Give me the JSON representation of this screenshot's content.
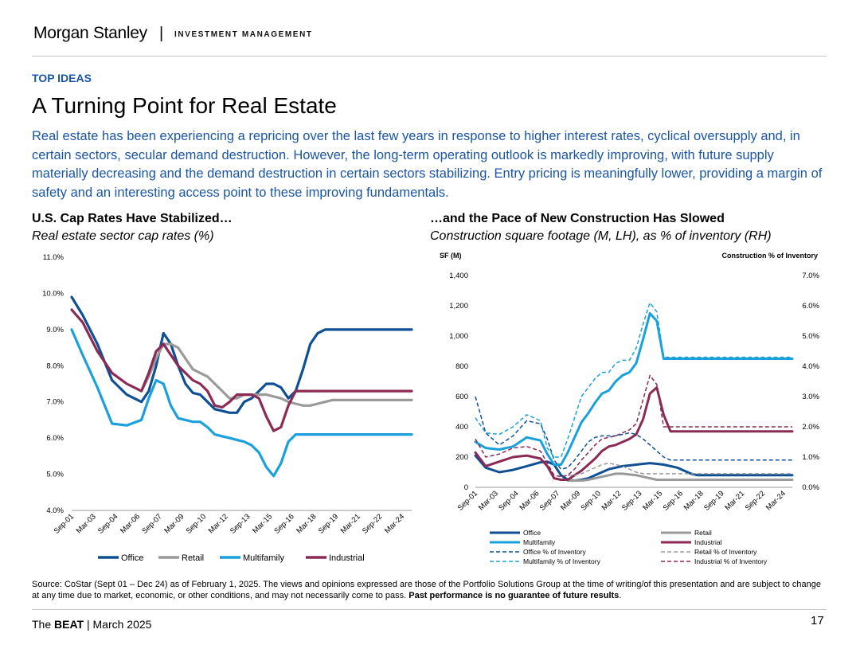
{
  "header": {
    "brand": "Morgan Stanley",
    "separator": "|",
    "division": "INVESTMENT MANAGEMENT",
    "kicker": "TOP IDEAS",
    "title": "A Turning Point for Real Estate",
    "intro": "Real estate has been experiencing a repricing over the last few years in response to higher interest rates, cyclical oversupply and, in certain sectors, secular demand destruction. However, the long-term operating outlook is markedly improving, with future supply materially decreasing and the demand destruction in certain sectors stabilizing. Entry pricing is meaningfully lower, providing a margin of safety and an interesting access point to these improving fundamentals."
  },
  "colors": {
    "office": "#0f4f94",
    "retail": "#9a9a9a",
    "multifamily": "#1aa0dc",
    "industrial": "#8b2a55",
    "accent": "#1a55a4"
  },
  "chart_data": [
    {
      "type": "line",
      "title": "U.S. Cap Rates Have Stabilized…",
      "subtitle": "Real estate sector cap rates (%)",
      "ylim": [
        4.0,
        11.0
      ],
      "y_ticks": [
        "4.0%",
        "5.0%",
        "6.0%",
        "7.0%",
        "8.0%",
        "9.0%",
        "10.0%",
        "11.0%"
      ],
      "x_tick_labels": [
        "Sep-01",
        "Mar-03",
        "Sep-04",
        "Mar-06",
        "Sep-07",
        "Mar-09",
        "Sep-10",
        "Mar-12",
        "Sep-13",
        "Mar-15",
        "Sep-16",
        "Mar-18",
        "Sep-19",
        "Mar-21",
        "Sep-22",
        "Mar-24"
      ],
      "x": [
        2001.75,
        2002.5,
        2003.5,
        2004.5,
        2005.5,
        2006.5,
        2007.0,
        2007.5,
        2008.0,
        2008.5,
        2009.0,
        2009.5,
        2010.0,
        2010.5,
        2011.0,
        2011.5,
        2012.0,
        2012.5,
        2013.0,
        2013.5,
        2014.0,
        2014.5,
        2015.0,
        2015.5,
        2016.0,
        2016.5,
        2017.0,
        2017.5,
        2018.0,
        2018.5,
        2019.0,
        2019.5,
        2020.0,
        2020.5,
        2021.0,
        2021.5,
        2022.0,
        2022.5,
        2023.0,
        2023.5,
        2024.0,
        2024.5,
        2024.9
      ],
      "series": [
        {
          "name": "Office",
          "color": "#0f4f94",
          "values": [
            9.9,
            9.4,
            8.6,
            7.6,
            7.2,
            7.0,
            7.3,
            8.0,
            8.9,
            8.6,
            8.0,
            7.5,
            7.25,
            7.2,
            7.0,
            6.8,
            6.75,
            6.7,
            6.7,
            7.0,
            7.1,
            7.3,
            7.5,
            7.5,
            7.4,
            7.1,
            7.3,
            7.9,
            8.6,
            8.9,
            9.0,
            9.0,
            9.0,
            9.0,
            9.0,
            9.0,
            9.0,
            9.0,
            9.0,
            9.0,
            9.0,
            9.0,
            9.0
          ]
        },
        {
          "name": "Retail",
          "color": "#9a9a9a",
          "values": [
            null,
            null,
            null,
            null,
            null,
            7.3,
            7.7,
            8.2,
            8.6,
            8.6,
            8.5,
            8.2,
            7.9,
            7.8,
            7.7,
            7.5,
            7.3,
            7.1,
            7.1,
            7.2,
            7.2,
            7.2,
            7.2,
            7.15,
            7.1,
            7.0,
            6.95,
            6.9,
            6.9,
            6.95,
            7.0,
            7.05,
            7.05,
            7.05,
            7.05,
            7.05,
            7.05,
            7.05,
            7.05,
            7.05,
            7.05,
            7.05,
            7.05
          ]
        },
        {
          "name": "Multifamily",
          "color": "#1aa0dc",
          "values": [
            9.0,
            8.3,
            7.4,
            6.4,
            6.35,
            6.5,
            7.1,
            7.6,
            7.5,
            6.9,
            6.55,
            6.5,
            6.45,
            6.45,
            6.3,
            6.1,
            6.05,
            6.0,
            5.95,
            5.9,
            5.8,
            5.6,
            5.2,
            4.95,
            5.3,
            5.9,
            6.1,
            6.1,
            6.1,
            6.1,
            6.1,
            6.1,
            6.1,
            6.1,
            6.1,
            6.1,
            6.1,
            6.1,
            6.1,
            6.1,
            6.1,
            6.1,
            6.1
          ]
        },
        {
          "name": "Industrial",
          "color": "#8b2a55",
          "values": [
            9.55,
            9.2,
            8.4,
            7.8,
            7.5,
            7.3,
            7.8,
            8.4,
            8.6,
            8.3,
            8.0,
            7.8,
            7.6,
            7.5,
            7.3,
            6.9,
            6.85,
            7.0,
            7.2,
            7.2,
            7.2,
            7.1,
            6.6,
            6.2,
            6.3,
            6.9,
            7.3,
            7.3,
            7.3,
            7.3,
            7.3,
            7.3,
            7.3,
            7.3,
            7.3,
            7.3,
            7.3,
            7.3,
            7.3,
            7.3,
            7.3,
            7.3,
            7.3
          ]
        }
      ],
      "legend": "bottom"
    },
    {
      "type": "line",
      "title": "…and the Pace of New Construction Has Slowed",
      "subtitle": "Construction square footage (M, LH), as % of inventory (RH)",
      "ylabel_left": "SF (M)",
      "ylabel_right": "Construction % of Inventory",
      "ylim_left": [
        0,
        1400
      ],
      "ylim_right": [
        0.0,
        7.0
      ],
      "y_ticks_left": [
        "0",
        "200",
        "400",
        "600",
        "800",
        "1,000",
        "1,200",
        "1,400"
      ],
      "y_ticks_right": [
        "0.0%",
        "1.0%",
        "2.0%",
        "3.0%",
        "4.0%",
        "5.0%",
        "6.0%",
        "7.0%"
      ],
      "x_tick_labels": [
        "Sep-01",
        "Mar-03",
        "Sep-04",
        "Mar-06",
        "Sep-07",
        "Mar-09",
        "Sep-10",
        "Mar-12",
        "Sep-13",
        "Mar-15",
        "Sep-16",
        "Mar-18",
        "Sep-19",
        "Mar-21",
        "Sep-22",
        "Mar-24"
      ],
      "x": [
        2001.75,
        2002.5,
        2003.5,
        2004.5,
        2005.5,
        2006.5,
        2007.0,
        2007.5,
        2008.0,
        2008.5,
        2009.0,
        2009.5,
        2010.0,
        2010.5,
        2011.0,
        2011.5,
        2012.0,
        2012.5,
        2013.0,
        2013.5,
        2014.0,
        2014.5,
        2015.0,
        2015.5,
        2016.0,
        2016.5,
        2017.0,
        2017.5,
        2018.0,
        2018.5,
        2019.0,
        2019.5,
        2020.0,
        2020.5,
        2021.0,
        2021.5,
        2022.0,
        2022.5,
        2023.0,
        2023.5,
        2024.0,
        2024.5,
        2024.9
      ],
      "series": [
        {
          "name": "Office",
          "axis": "left",
          "color": "#0f4f94",
          "dash": false,
          "values": [
            210,
            130,
            100,
            115,
            140,
            165,
            170,
            150,
            80,
            50,
            45,
            50,
            60,
            80,
            100,
            120,
            130,
            140,
            145,
            150,
            155,
            160,
            155,
            150,
            140,
            130,
            110,
            90,
            80,
            80,
            80,
            80,
            80,
            80,
            80,
            80,
            80,
            80,
            80,
            80,
            80,
            80,
            80
          ]
        },
        {
          "name": "Retail",
          "axis": "left",
          "color": "#9a9a9a",
          "dash": false,
          "values": [
            null,
            null,
            null,
            null,
            null,
            null,
            null,
            null,
            null,
            45,
            45,
            45,
            50,
            60,
            70,
            80,
            90,
            90,
            85,
            80,
            70,
            60,
            50,
            50,
            50,
            50,
            50,
            50,
            50,
            50,
            50,
            50,
            50,
            50,
            50,
            50,
            50,
            50,
            50,
            50,
            50,
            50,
            50
          ]
        },
        {
          "name": "Multifamily",
          "axis": "left",
          "color": "#1aa0dc",
          "dash": false,
          "values": [
            300,
            260,
            250,
            270,
            330,
            310,
            220,
            150,
            150,
            230,
            330,
            430,
            490,
            560,
            620,
            640,
            700,
            740,
            760,
            820,
            980,
            1150,
            1100,
            850,
            850,
            850,
            850,
            850,
            850,
            850,
            850,
            850,
            850,
            850,
            850,
            850,
            850,
            850,
            850,
            850,
            850,
            850,
            850
          ]
        },
        {
          "name": "Industrial",
          "axis": "left",
          "color": "#8b2a55",
          "dash": false,
          "values": [
            230,
            140,
            170,
            200,
            210,
            190,
            140,
            60,
            50,
            50,
            80,
            110,
            150,
            190,
            240,
            270,
            280,
            300,
            320,
            350,
            450,
            620,
            660,
            480,
            370,
            370,
            370,
            370,
            370,
            370,
            370,
            370,
            370,
            370,
            370,
            370,
            370,
            370,
            370,
            370,
            370,
            370,
            370
          ]
        },
        {
          "name": "Office % of Inventory",
          "axis": "right",
          "color": "#0f4f94",
          "dash": true,
          "values": [
            3.0,
            1.8,
            1.4,
            1.7,
            2.2,
            2.1,
            1.6,
            0.9,
            0.6,
            0.65,
            0.9,
            1.2,
            1.5,
            1.65,
            1.7,
            1.7,
            1.7,
            1.75,
            1.8,
            1.75,
            1.6,
            1.4,
            1.2,
            1.0,
            0.9,
            0.9,
            0.9,
            0.9,
            0.9,
            0.9,
            0.9,
            0.9,
            0.9,
            0.9,
            0.9,
            0.9,
            0.9,
            0.9,
            0.9,
            0.9,
            0.9,
            0.9,
            0.9
          ]
        },
        {
          "name": "Retail % of Inventory",
          "axis": "right",
          "color": "#9a9a9a",
          "dash": true,
          "values": [
            null,
            null,
            null,
            null,
            null,
            null,
            null,
            null,
            null,
            0.4,
            0.4,
            0.45,
            0.55,
            0.65,
            0.75,
            0.8,
            0.75,
            0.7,
            0.6,
            0.5,
            0.45,
            0.45,
            0.45,
            0.45,
            0.45,
            0.45,
            0.45,
            0.45,
            0.45,
            0.45,
            0.45,
            0.45,
            0.45,
            0.45,
            0.45,
            0.45,
            0.45,
            0.45,
            0.45,
            0.45,
            0.45,
            0.45,
            0.45
          ]
        },
        {
          "name": "Multifamily % of Inventory",
          "axis": "right",
          "color": "#1aa0dc",
          "dash": true,
          "values": [
            2.3,
            1.8,
            1.75,
            2.0,
            2.4,
            2.2,
            1.3,
            1.0,
            1.0,
            1.6,
            2.3,
            3.0,
            3.3,
            3.6,
            3.8,
            3.8,
            4.1,
            4.2,
            4.2,
            4.6,
            5.4,
            6.1,
            5.8,
            4.3,
            4.3,
            4.3,
            4.3,
            4.3,
            4.3,
            4.3,
            4.3,
            4.3,
            4.3,
            4.3,
            4.3,
            4.3,
            4.3,
            4.3,
            4.3,
            4.3,
            4.3,
            4.3,
            4.3
          ]
        },
        {
          "name": "Industrial % of Inventory",
          "axis": "right",
          "color": "#8b2a55",
          "dash": true,
          "values": [
            1.6,
            1.0,
            1.1,
            1.3,
            1.35,
            1.2,
            0.8,
            0.4,
            0.35,
            0.4,
            0.6,
            0.9,
            1.15,
            1.4,
            1.6,
            1.65,
            1.7,
            1.8,
            1.9,
            2.1,
            2.9,
            3.7,
            3.4,
            2.0,
            2.0,
            2.0,
            2.0,
            2.0,
            2.0,
            2.0,
            2.0,
            2.0,
            2.0,
            2.0,
            2.0,
            2.0,
            2.0,
            2.0,
            2.0,
            2.0,
            2.0,
            2.0,
            2.0
          ]
        }
      ],
      "legend": "bottom"
    }
  ],
  "footnote": {
    "text": "Source: CoStar (Sept 01 – Dec 24) as of February 1, 2025. The views and opinions expressed are those of the Portfolio Solutions Group at the time of writing/of this presentation and are subject to change at any time due to market, economic, or other conditions, and may not necessarily come to pass. ",
    "bold": "Past performance is no guarantee of future results",
    "end": "."
  },
  "footer": {
    "pub_prefix": "The ",
    "pub_bold": "BEAT",
    "pub_suffix": " | March 2025",
    "page": "17"
  }
}
